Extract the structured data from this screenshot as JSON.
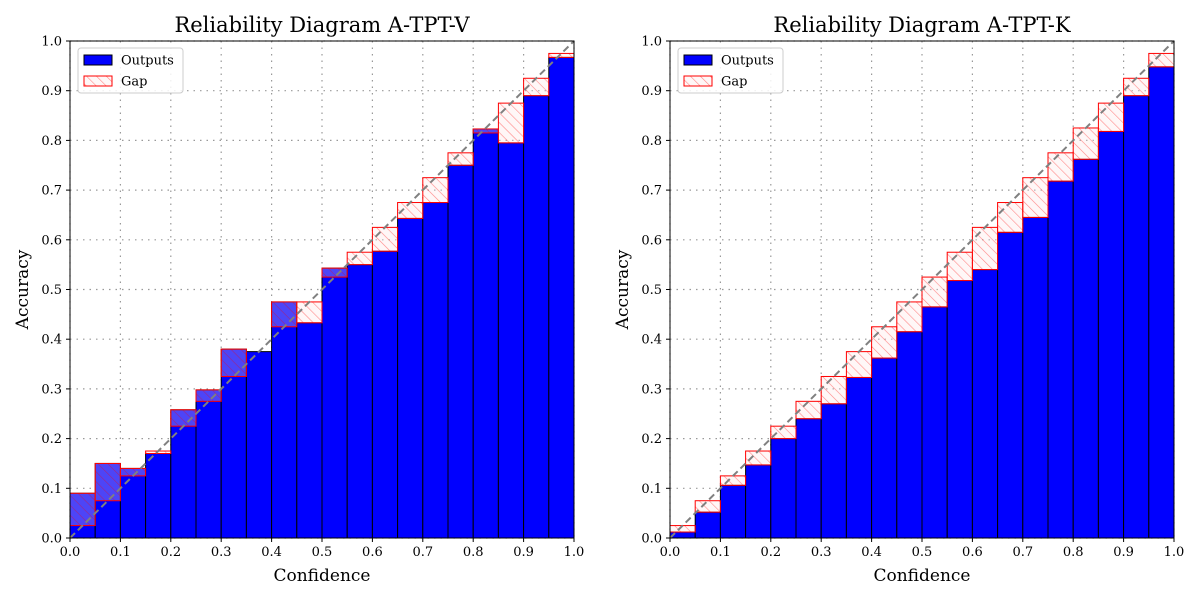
{
  "chart_data": [
    {
      "type": "bar",
      "title": "Reliability Diagram A-TPT-V",
      "xlabel": "Confidence",
      "ylabel": "Accuracy",
      "xlim": [
        0,
        1
      ],
      "ylim": [
        0,
        1
      ],
      "grid": true,
      "legend": {
        "position": "upper-left",
        "entries": [
          "Outputs",
          "Gap"
        ]
      },
      "bin_centers": [
        0.025,
        0.075,
        0.125,
        0.175,
        0.225,
        0.275,
        0.325,
        0.375,
        0.425,
        0.475,
        0.525,
        0.575,
        0.625,
        0.675,
        0.725,
        0.775,
        0.825,
        0.875,
        0.925,
        0.975
      ],
      "series": [
        {
          "name": "Outputs",
          "values": [
            0.09,
            0.15,
            0.14,
            0.17,
            0.258,
            0.298,
            0.38,
            0.375,
            0.475,
            0.433,
            0.543,
            0.55,
            0.577,
            0.643,
            0.675,
            0.75,
            0.823,
            0.795,
            0.89,
            0.967
          ]
        },
        {
          "name": "Gap",
          "bottom": [
            0.025,
            0.075,
            0.125,
            0.17,
            0.225,
            0.275,
            0.325,
            0.375,
            0.425,
            0.433,
            0.525,
            0.55,
            0.577,
            0.643,
            0.675,
            0.75,
            0.815,
            0.795,
            0.89,
            0.967
          ],
          "top": [
            0.09,
            0.15,
            0.14,
            0.175,
            0.258,
            0.298,
            0.38,
            0.375,
            0.475,
            0.475,
            0.543,
            0.575,
            0.625,
            0.675,
            0.725,
            0.775,
            0.823,
            0.875,
            0.925,
            0.975
          ]
        }
      ],
      "xticks": [
        "0.0",
        "0.1",
        "0.2",
        "0.3",
        "0.4",
        "0.5",
        "0.6",
        "0.7",
        "0.8",
        "0.9",
        "1.0"
      ],
      "yticks": [
        "0.0",
        "0.1",
        "0.2",
        "0.3",
        "0.4",
        "0.5",
        "0.6",
        "0.7",
        "0.8",
        "0.9",
        "1.0"
      ]
    },
    {
      "type": "bar",
      "title": "Reliability Diagram A-TPT-K",
      "xlabel": "Confidence",
      "ylabel": "Accuracy",
      "xlim": [
        0,
        1
      ],
      "ylim": [
        0,
        1
      ],
      "grid": true,
      "legend": {
        "position": "upper-left",
        "entries": [
          "Outputs",
          "Gap"
        ]
      },
      "bin_centers": [
        0.025,
        0.075,
        0.125,
        0.175,
        0.225,
        0.275,
        0.325,
        0.375,
        0.425,
        0.475,
        0.525,
        0.575,
        0.625,
        0.675,
        0.725,
        0.775,
        0.825,
        0.875,
        0.925,
        0.975
      ],
      "series": [
        {
          "name": "Outputs",
          "values": [
            0.012,
            0.052,
            0.106,
            0.147,
            0.2,
            0.24,
            0.27,
            0.323,
            0.362,
            0.415,
            0.465,
            0.518,
            0.54,
            0.615,
            0.645,
            0.718,
            0.762,
            0.818,
            0.89,
            0.948
          ]
        },
        {
          "name": "Gap",
          "bottom": [
            0.012,
            0.052,
            0.106,
            0.147,
            0.2,
            0.24,
            0.27,
            0.323,
            0.362,
            0.415,
            0.465,
            0.518,
            0.54,
            0.615,
            0.645,
            0.718,
            0.762,
            0.818,
            0.89,
            0.948
          ],
          "top": [
            0.025,
            0.075,
            0.125,
            0.175,
            0.225,
            0.275,
            0.325,
            0.375,
            0.425,
            0.475,
            0.525,
            0.575,
            0.625,
            0.675,
            0.725,
            0.775,
            0.825,
            0.875,
            0.925,
            0.975
          ]
        }
      ],
      "xticks": [
        "0.0",
        "0.1",
        "0.2",
        "0.3",
        "0.4",
        "0.5",
        "0.6",
        "0.7",
        "0.8",
        "0.9",
        "1.0"
      ],
      "yticks": [
        "0.0",
        "0.1",
        "0.2",
        "0.3",
        "0.4",
        "0.5",
        "0.6",
        "0.7",
        "0.8",
        "0.9",
        "1.0"
      ]
    }
  ],
  "colors": {
    "outputs_fill": "#0000ff",
    "gap_edge": "#ff0000",
    "gap_fill": "#ffe6e6",
    "diagonal": "#808080",
    "grid": "#999999"
  }
}
